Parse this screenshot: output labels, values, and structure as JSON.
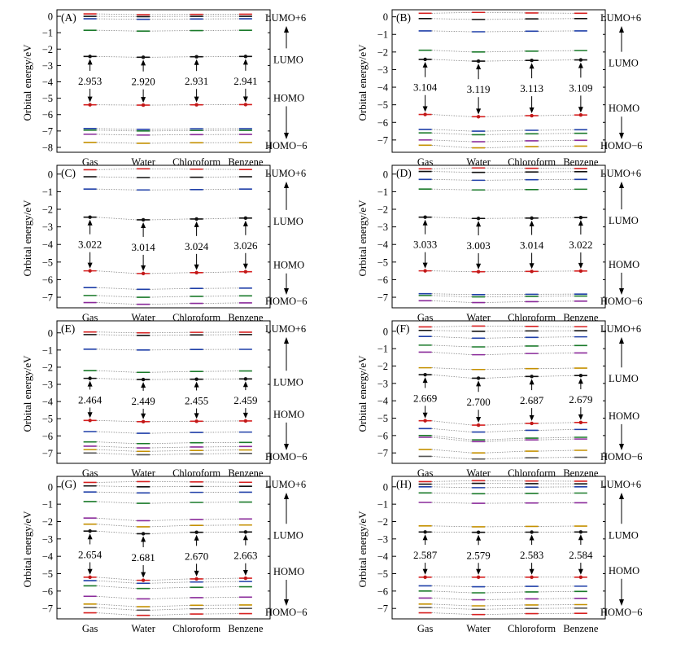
{
  "figure": {
    "ylabel": "Orbital energy/eV",
    "categories": [
      "Gas",
      "Water",
      "Chloroform",
      "Benzene"
    ],
    "label_top": "LUMO+6",
    "label_lumo": "LUMO",
    "label_homo": "HOMO",
    "label_bottom": "HOMO−6",
    "colors": [
      "#d62020",
      "#111111",
      "#1f3fa8",
      "#1a7a2a",
      "#8a2a9a",
      "#c49000",
      "#555555"
    ]
  },
  "chart_data": [
    {
      "type": "scatter",
      "panel": "(A)",
      "categories": [
        "Gas",
        "Water",
        "Chloroform",
        "Benzene"
      ],
      "ylabel": "Orbital energy/eV",
      "ylim": [
        -8.3,
        0.4
      ],
      "yticks": [
        0,
        -1,
        -2,
        -3,
        -4,
        -5,
        -6,
        -7,
        -8
      ],
      "gaps": [
        "2.953",
        "2.920",
        "2.931",
        "2.941"
      ],
      "lumo": [
        -2.45,
        -2.5,
        -2.47,
        -2.45
      ],
      "homo": [
        -5.4,
        -5.42,
        -5.4,
        -5.39
      ],
      "unocc": [
        [
          0.15,
          0.1,
          0.12,
          0.13
        ],
        [
          0.0,
          -0.02,
          0.0,
          0.0
        ],
        [
          -0.15,
          -0.18,
          -0.16,
          -0.15
        ],
        [
          -0.85,
          -0.9,
          -0.87,
          -0.85
        ]
      ],
      "occ": [
        [
          -6.85,
          -6.9,
          -6.87,
          -6.86
        ],
        [
          -6.95,
          -7.0,
          -6.97,
          -6.96
        ],
        [
          -7.2,
          -7.25,
          -7.22,
          -7.21
        ],
        [
          -7.7,
          -7.75,
          -7.72,
          -7.71
        ]
      ]
    },
    {
      "type": "scatter",
      "panel": "(B)",
      "categories": [
        "Gas",
        "Water",
        "Chloroform",
        "Benzene"
      ],
      "ylabel": "Orbital energy/eV",
      "ylim": [
        -7.7,
        0.4
      ],
      "yticks": [
        0,
        -1,
        -2,
        -3,
        -4,
        -5,
        -6,
        -7
      ],
      "gaps": [
        "3.104",
        "3.119",
        "3.113",
        "3.109"
      ],
      "lumo": [
        -2.42,
        -2.52,
        -2.48,
        -2.45
      ],
      "homo": [
        -5.55,
        -5.68,
        -5.62,
        -5.58
      ],
      "unocc": [
        [
          0.2,
          0.25,
          0.22,
          0.2
        ],
        [
          -0.1,
          -0.15,
          -0.12,
          -0.1
        ],
        [
          -0.8,
          -0.85,
          -0.82,
          -0.8
        ],
        [
          -1.9,
          -2.0,
          -1.95,
          -1.92
        ]
      ],
      "occ": [
        [
          -6.4,
          -6.5,
          -6.45,
          -6.42
        ],
        [
          -6.6,
          -6.7,
          -6.65,
          -6.62
        ],
        [
          -7.0,
          -7.1,
          -7.05,
          -7.02
        ],
        [
          -7.3,
          -7.45,
          -7.38,
          -7.35
        ]
      ]
    },
    {
      "type": "scatter",
      "panel": "(C)",
      "categories": [
        "Gas",
        "Water",
        "Chloroform",
        "Benzene"
      ],
      "ylabel": "Orbital energy/eV",
      "ylim": [
        -7.6,
        0.5
      ],
      "yticks": [
        0,
        -1,
        -2,
        -3,
        -4,
        -5,
        -6,
        -7
      ],
      "gaps": [
        "3.022",
        "3.014",
        "3.024",
        "3.026"
      ],
      "lumo": [
        -2.45,
        -2.6,
        -2.55,
        -2.5
      ],
      "homo": [
        -5.5,
        -5.65,
        -5.6,
        -5.55
      ],
      "unocc": [
        [
          0.25,
          0.3,
          0.28,
          0.26
        ],
        [
          -0.15,
          -0.2,
          -0.18,
          -0.15
        ],
        [
          -0.85,
          -0.9,
          -0.88,
          -0.85
        ]
      ],
      "occ": [
        [
          -6.45,
          -6.55,
          -6.5,
          -6.48
        ],
        [
          -6.9,
          -7.0,
          -6.95,
          -6.92
        ],
        [
          -7.3,
          -7.4,
          -7.35,
          -7.32
        ]
      ]
    },
    {
      "type": "scatter",
      "panel": "(D)",
      "categories": [
        "Gas",
        "Water",
        "Chloroform",
        "Benzene"
      ],
      "ylabel": "Orbital energy/eV",
      "ylim": [
        -7.6,
        0.5
      ],
      "yticks": [
        0,
        -1,
        -2,
        -3,
        -4,
        -5,
        -6,
        -7
      ],
      "gaps": [
        "3.033",
        "3.003",
        "3.014",
        "3.022"
      ],
      "lumo": [
        -2.45,
        -2.52,
        -2.5,
        -2.47
      ],
      "homo": [
        -5.5,
        -5.55,
        -5.53,
        -5.51
      ],
      "unocc": [
        [
          0.3,
          0.35,
          0.33,
          0.32
        ],
        [
          0.15,
          0.1,
          0.12,
          0.14
        ],
        [
          -0.3,
          -0.35,
          -0.32,
          -0.3
        ],
        [
          -0.85,
          -0.9,
          -0.88,
          -0.86
        ]
      ],
      "occ": [
        [
          -6.8,
          -6.85,
          -6.83,
          -6.82
        ],
        [
          -6.9,
          -6.98,
          -6.95,
          -6.93
        ],
        [
          -7.2,
          -7.3,
          -7.25,
          -7.22
        ]
      ]
    },
    {
      "type": "scatter",
      "panel": "(E)",
      "categories": [
        "Gas",
        "Water",
        "Chloroform",
        "Benzene"
      ],
      "ylabel": "Orbital energy/eV",
      "ylim": [
        -7.6,
        0.7
      ],
      "yticks": [
        0,
        -1,
        -2,
        -3,
        -4,
        -5,
        -6,
        -7
      ],
      "gaps": [
        "2.464",
        "2.449",
        "2.455",
        "2.459"
      ],
      "lumo": [
        -2.65,
        -2.72,
        -2.7,
        -2.68
      ],
      "homo": [
        -5.1,
        -5.17,
        -5.15,
        -5.13
      ],
      "unocc": [
        [
          0.05,
          0.0,
          0.03,
          0.04
        ],
        [
          -0.1,
          -0.15,
          -0.12,
          -0.1
        ],
        [
          -0.95,
          -1.0,
          -0.97,
          -0.96
        ],
        [
          -2.2,
          -2.3,
          -2.25,
          -2.22
        ]
      ],
      "occ": [
        [
          -5.75,
          -5.85,
          -5.8,
          -5.78
        ],
        [
          -6.35,
          -6.45,
          -6.4,
          -6.38
        ],
        [
          -6.6,
          -6.7,
          -6.65,
          -6.62
        ],
        [
          -6.8,
          -6.9,
          -6.85,
          -6.82
        ],
        [
          -7.0,
          -7.1,
          -7.05,
          -7.02
        ]
      ]
    },
    {
      "type": "scatter",
      "panel": "(F)",
      "categories": [
        "Gas",
        "Water",
        "Chloroform",
        "Benzene"
      ],
      "ylabel": "Orbital energy/eV",
      "ylim": [
        -7.6,
        0.6
      ],
      "yticks": [
        0,
        -1,
        -2,
        -3,
        -4,
        -5,
        -6,
        -7
      ],
      "gaps": [
        "2.669",
        "2.700",
        "2.687",
        "2.679"
      ],
      "lumo": [
        -2.5,
        -2.7,
        -2.6,
        -2.55
      ],
      "homo": [
        -5.15,
        -5.4,
        -5.3,
        -5.25
      ],
      "unocc": [
        [
          0.25,
          0.3,
          0.28,
          0.26
        ],
        [
          0.05,
          0.0,
          0.02,
          0.03
        ],
        [
          -0.3,
          -0.4,
          -0.35,
          -0.32
        ],
        [
          -0.8,
          -0.9,
          -0.85,
          -0.82
        ],
        [
          -1.2,
          -1.35,
          -1.28,
          -1.25
        ],
        [
          -2.1,
          -2.2,
          -2.15,
          -2.12
        ]
      ],
      "occ": [
        [
          -5.6,
          -5.8,
          -5.7,
          -5.65
        ],
        [
          -6.0,
          -6.25,
          -6.15,
          -6.1
        ],
        [
          -6.1,
          -6.35,
          -6.25,
          -6.2
        ],
        [
          -6.8,
          -7.0,
          -6.9,
          -6.85
        ],
        [
          -7.2,
          -7.35,
          -7.28,
          -7.25
        ]
      ]
    },
    {
      "type": "scatter",
      "panel": "(G)",
      "categories": [
        "Gas",
        "Water",
        "Chloroform",
        "Benzene"
      ],
      "ylabel": "Orbital energy/eV",
      "ylim": [
        -7.6,
        0.6
      ],
      "yticks": [
        0,
        -1,
        -2,
        -3,
        -4,
        -5,
        -6,
        -7
      ],
      "gaps": [
        "2.654",
        "2.681",
        "2.670",
        "2.663"
      ],
      "lumo": [
        -2.55,
        -2.7,
        -2.62,
        -2.6
      ],
      "homo": [
        -5.2,
        -5.38,
        -5.3,
        -5.26
      ],
      "unocc": [
        [
          0.25,
          0.3,
          0.28,
          0.26
        ],
        [
          0.05,
          0.0,
          0.02,
          0.03
        ],
        [
          -0.3,
          -0.35,
          -0.32,
          -0.31
        ],
        [
          -0.85,
          -0.95,
          -0.9,
          -0.88
        ],
        [
          -1.8,
          -1.95,
          -1.88,
          -1.85
        ],
        [
          -2.15,
          -2.3,
          -2.22,
          -2.2
        ]
      ],
      "occ": [
        [
          -5.4,
          -5.55,
          -5.48,
          -5.45
        ],
        [
          -5.7,
          -5.85,
          -5.78,
          -5.75
        ],
        [
          -6.3,
          -6.45,
          -6.38,
          -6.35
        ],
        [
          -6.75,
          -6.9,
          -6.82,
          -6.8
        ],
        [
          -6.95,
          -7.1,
          -7.02,
          -7.0
        ],
        [
          -7.25,
          -7.4,
          -7.32,
          -7.3
        ]
      ]
    },
    {
      "type": "scatter",
      "panel": "(H)",
      "categories": [
        "Gas",
        "Water",
        "Chloroform",
        "Benzene"
      ],
      "ylabel": "Orbital energy/eV",
      "ylim": [
        -7.6,
        0.6
      ],
      "yticks": [
        0,
        -1,
        -2,
        -3,
        -4,
        -5,
        -6,
        -7
      ],
      "gaps": [
        "2.587",
        "2.579",
        "2.583",
        "2.584"
      ],
      "lumo": [
        -2.6,
        -2.62,
        -2.61,
        -2.6
      ],
      "homo": [
        -5.2,
        -5.2,
        -5.2,
        -5.2
      ],
      "unocc": [
        [
          0.3,
          0.35,
          0.33,
          0.32
        ],
        [
          0.15,
          0.2,
          0.18,
          0.17
        ],
        [
          0.0,
          -0.05,
          -0.02,
          0.0
        ],
        [
          -0.35,
          -0.4,
          -0.38,
          -0.36
        ],
        [
          -0.9,
          -0.95,
          -0.93,
          -0.92
        ],
        [
          -2.25,
          -2.3,
          -2.28,
          -2.26
        ]
      ],
      "occ": [
        [
          -5.7,
          -5.75,
          -5.73,
          -5.72
        ],
        [
          -6.0,
          -6.1,
          -6.05,
          -6.02
        ],
        [
          -6.4,
          -6.5,
          -6.45,
          -6.42
        ],
        [
          -6.75,
          -6.85,
          -6.8,
          -6.78
        ],
        [
          -6.95,
          -7.05,
          -7.0,
          -6.98
        ],
        [
          -7.25,
          -7.35,
          -7.3,
          -7.28
        ]
      ]
    }
  ]
}
